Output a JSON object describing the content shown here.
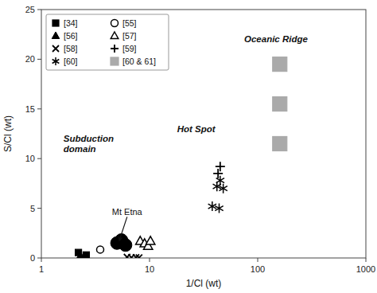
{
  "chart_data": {
    "type": "scatter",
    "title": "",
    "xlabel": "1/Cl (wt)",
    "ylabel": "S/Cl (wt)",
    "log": "x",
    "xlim": [
      1,
      1000
    ],
    "xticks": [
      1,
      10,
      100,
      1000
    ],
    "ylim": [
      0,
      25
    ],
    "yticks": [
      0,
      5,
      10,
      15,
      20,
      25
    ],
    "grid": false,
    "legend": "upper left",
    "series": [
      {
        "name": "[34]",
        "marker": "square",
        "color": "#000000",
        "x": [
          2.2,
          2.6
        ],
        "values": [
          0.55,
          0.3
        ]
      },
      {
        "name": "[55]",
        "marker": "circle-open",
        "color": "#000000",
        "x": [
          3.5
        ],
        "values": [
          0.85
        ]
      },
      {
        "name": "[56]",
        "marker": "triangle",
        "color": "#000000",
        "x": [
          2.3
        ],
        "values": [
          0.25
        ]
      },
      {
        "marker": "circle-large",
        "color": "#000000",
        "x": [
          5.0,
          5.5,
          6.0
        ],
        "values": [
          1.5,
          1.8,
          1.3
        ]
      },
      {
        "name": "[57]",
        "marker": "triangle-open",
        "color": "#000000",
        "x": [
          8.2,
          9.0,
          9.7,
          10.2
        ],
        "values": [
          1.7,
          1.45,
          1.2,
          1.7
        ]
      },
      {
        "name": "[58]",
        "marker": "x",
        "color": "#000000",
        "x": [
          6.2,
          6.8,
          7.5,
          8.0
        ],
        "values": [
          0.08,
          0.05,
          0.05,
          0.03
        ]
      },
      {
        "name": "[59]",
        "marker": "plus",
        "color": "#000000",
        "x": [
          43.0,
          45.0
        ],
        "values": [
          8.5,
          9.2
        ]
      },
      {
        "name": "[60]",
        "marker": "asterisk",
        "color": "#000000",
        "x": [
          38.0,
          42.0,
          45.0,
          48.0,
          44.0
        ],
        "values": [
          5.2,
          7.2,
          7.8,
          7.0,
          5.0
        ]
      },
      {
        "name": "[60 & 61]",
        "marker": "square-large",
        "color": "#aaaaaa",
        "x": [
          160,
          160,
          160
        ],
        "values": [
          19.5,
          15.5,
          11.5
        ]
      }
    ],
    "annotations": [
      {
        "text": "Mt Etna",
        "x": 4.5,
        "y": 4.3,
        "arrow_to": [
          5.2,
          1.6
        ]
      },
      {
        "text": "Subduction\ndomain",
        "x": 1.6,
        "y": 11.5
      },
      {
        "text": "Hot Spot",
        "x": 18,
        "y": 13.0
      },
      {
        "text": "Oceanic Ridge",
        "x": 75,
        "y": 22.0
      }
    ]
  }
}
